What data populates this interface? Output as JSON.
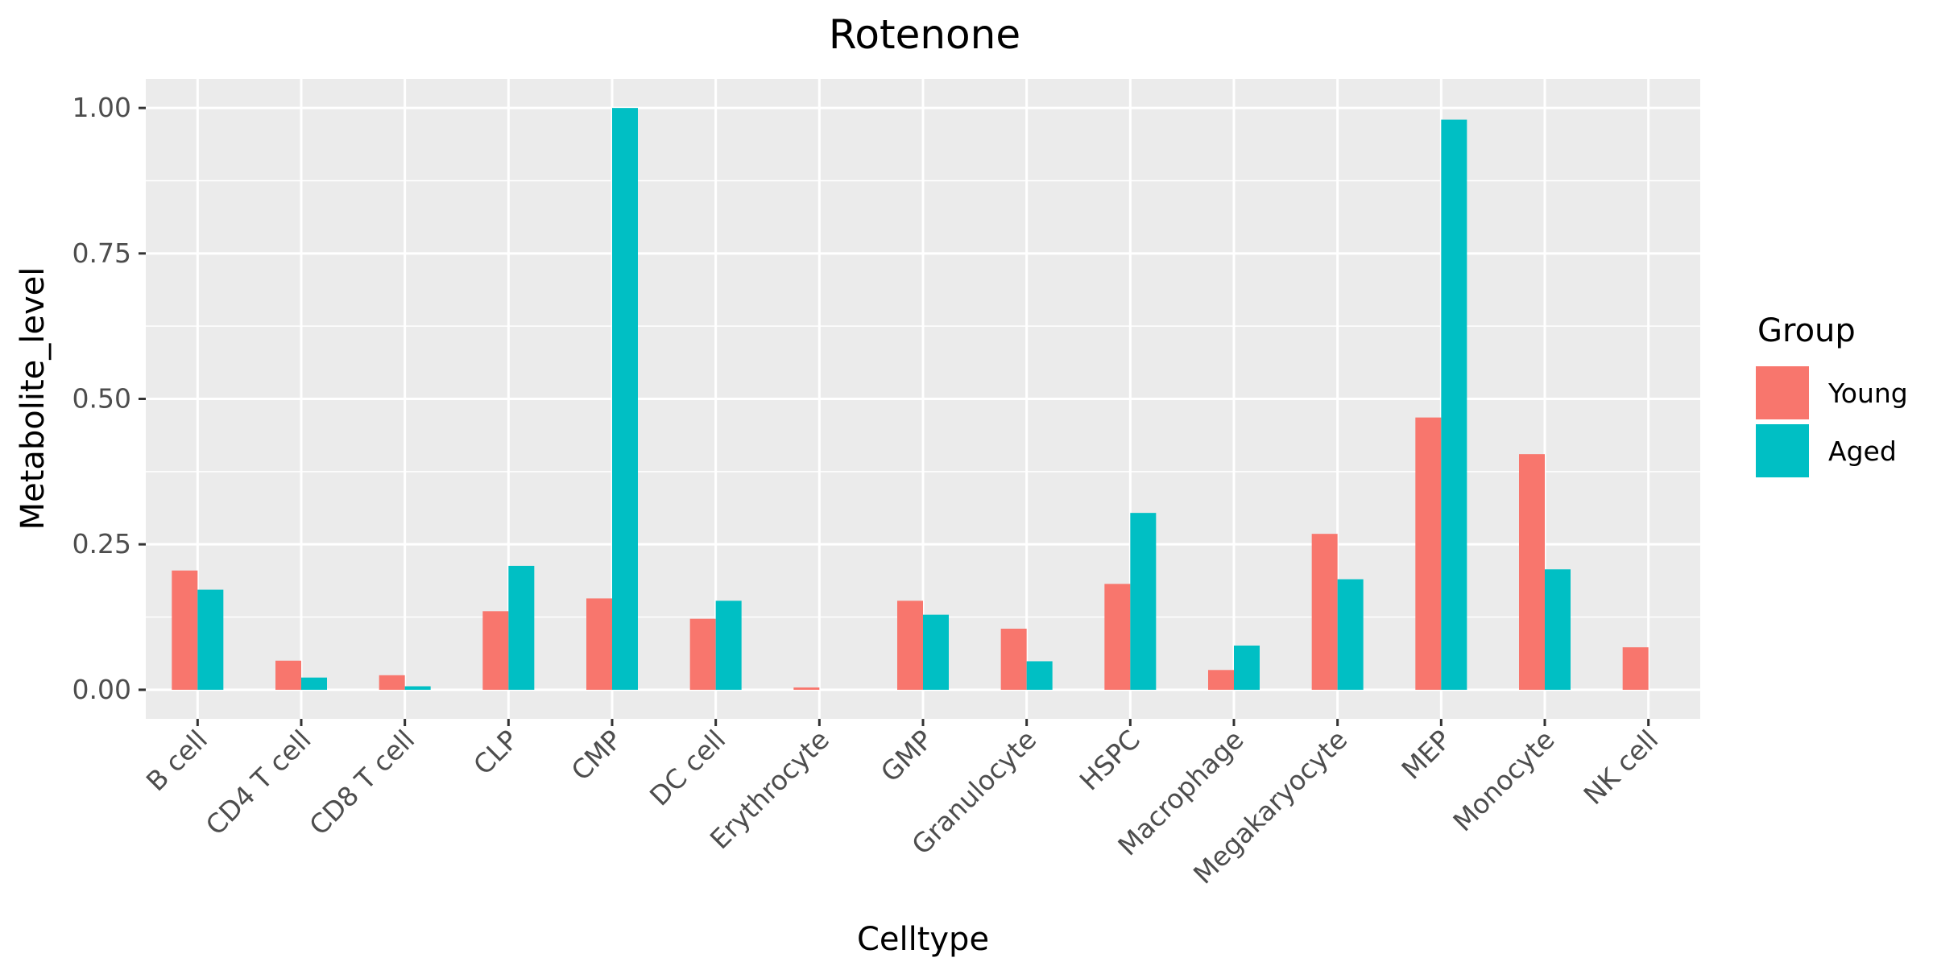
{
  "chart_data": {
    "type": "bar",
    "title": "Rotenone",
    "xlabel": "Celltype",
    "ylabel": "Metabolite_level",
    "categories": [
      "B cell",
      "CD4 T cell",
      "CD8 T cell",
      "CLP",
      "CMP",
      "DC cell",
      "Erythrocyte",
      "GMP",
      "Granulocyte",
      "HSPC",
      "Macrophage",
      "Megakaryocyte",
      "MEP",
      "Monocyte",
      "NK cell"
    ],
    "series": [
      {
        "name": "Young",
        "color": "#F8766D",
        "values": [
          0.205,
          0.05,
          0.025,
          0.135,
          0.157,
          0.122,
          0.004,
          0.153,
          0.105,
          0.182,
          0.034,
          0.268,
          0.468,
          0.405,
          0.073
        ]
      },
      {
        "name": "Aged",
        "color": "#00BFC4",
        "values": [
          0.172,
          0.021,
          0.006,
          0.213,
          1.0,
          0.153,
          0.0,
          0.129,
          0.049,
          0.304,
          0.076,
          0.19,
          0.98,
          0.207,
          0.0
        ]
      }
    ],
    "ylim": [
      -0.05,
      1.05
    ],
    "yticks": [
      0.0,
      0.25,
      0.5,
      0.75,
      1.0
    ],
    "ytick_labels": [
      "0.00",
      "0.25",
      "0.50",
      "0.75",
      "1.00"
    ],
    "legend_title": "Group",
    "legend_position": "right",
    "grid": true
  }
}
